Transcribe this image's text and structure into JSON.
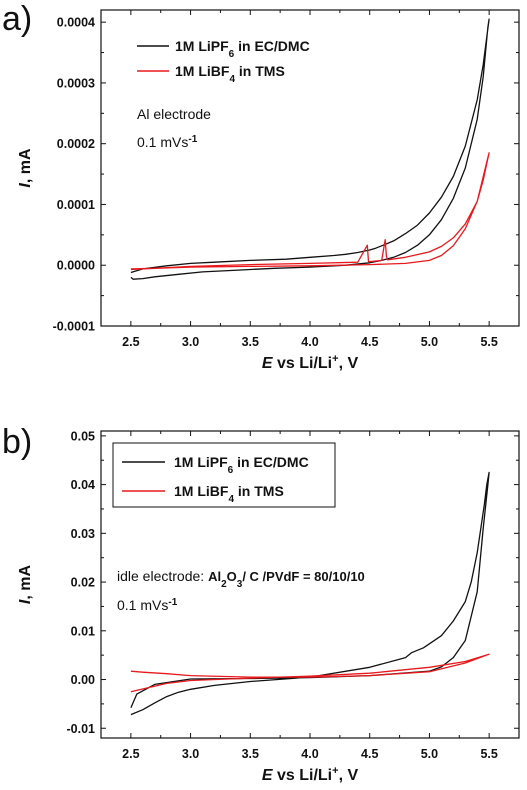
{
  "chart_data": [
    {
      "type": "line",
      "panel_label": "a)",
      "xlim": [
        2.25,
        5.75
      ],
      "ylim": [
        -0.0001,
        0.00042
      ],
      "x_ticks": [
        2.5,
        3.0,
        3.5,
        4.0,
        4.5,
        5.0,
        5.5
      ],
      "x_tick_labels": [
        "2.5",
        "3.0",
        "3.5",
        "4.0",
        "4.5",
        "5.0",
        "5.5"
      ],
      "y_ticks": [
        -0.0001,
        0.0,
        0.0001,
        0.0002,
        0.0003,
        0.0004
      ],
      "y_tick_labels": [
        "-0.0001",
        "0.0000",
        "0.0001",
        "0.0002",
        "0.0003",
        "0.0004"
      ],
      "xlabel": {
        "italic": "E",
        "text": " vs Li/Li",
        "sup": "+",
        "tail": ", V"
      },
      "ylabel": {
        "italic": "I",
        "text": ", mA"
      },
      "legend": [
        {
          "pre": "1M LiPF",
          "sub": "6",
          "post": "  in EC/DMC",
          "color": "#111111"
        },
        {
          "pre": "1M LiBF",
          "sub": "4",
          "post": "  in TMS",
          "color": "#e8191c"
        }
      ],
      "annotations": [
        {
          "text": "Al electrode"
        },
        {
          "pre": "0.1 mVs",
          "sup": "-1"
        }
      ],
      "series": [
        {
          "name": "1M LiPF6 in EC/DMC",
          "color": "#111111",
          "x": [
            2.5,
            2.6,
            2.8,
            3.0,
            3.2,
            3.5,
            3.8,
            4.0,
            4.2,
            4.3,
            4.4,
            4.5,
            4.55,
            4.6,
            4.7,
            4.8,
            4.9,
            5.0,
            5.1,
            5.2,
            5.3,
            5.4,
            5.45,
            5.5,
            5.49,
            5.45,
            5.4,
            5.3,
            5.2,
            5.1,
            5.0,
            4.9,
            4.8,
            4.7,
            4.6,
            4.5,
            4.3,
            4.0,
            3.7,
            3.4,
            3.1,
            2.9,
            2.7,
            2.6,
            2.52,
            2.5
          ],
          "y": [
            -1.2e-05,
            -6e-06,
            -1e-06,
            3e-06,
            5e-06,
            8e-06,
            1e-05,
            1.3e-05,
            1.6e-05,
            1.8e-05,
            2.1e-05,
            2.5e-05,
            2.8e-05,
            3.2e-05,
            4e-05,
            5.2e-05,
            6.6e-05,
            8.6e-05,
            0.000112,
            0.000146,
            0.000196,
            0.000272,
            0.00033,
            0.000405,
            0.000392,
            0.00031,
            0.00024,
            0.00016,
            0.00011,
            7.5e-05,
            5e-05,
            3.3e-05,
            2.1e-05,
            1.3e-05,
            8e-06,
            4e-06,
            0.0,
            -3e-06,
            -5e-06,
            -8e-06,
            -1.1e-05,
            -1.5e-05,
            -1.9e-05,
            -2.2e-05,
            -2.3e-05,
            -2e-05
          ]
        },
        {
          "name": "1M LiBF4 in TMS",
          "color": "#e8191c",
          "x": [
            2.5,
            2.7,
            3.0,
            3.5,
            4.0,
            4.4,
            4.48,
            4.49,
            4.5,
            4.6,
            4.63,
            4.64,
            4.65,
            4.8,
            5.0,
            5.1,
            5.2,
            5.3,
            5.4,
            5.45,
            5.5,
            5.48,
            5.4,
            5.3,
            5.2,
            5.1,
            5.0,
            4.8,
            4.5,
            4.0,
            3.5,
            3.0,
            2.7,
            2.5
          ],
          "y": [
            -7e-06,
            -5e-06,
            -2e-06,
            1e-06,
            3e-06,
            5e-06,
            3.3e-05,
            6e-06,
            6e-06,
            8e-06,
            4.2e-05,
            1.5e-05,
            9e-06,
            1.3e-05,
            2.2e-05,
            3.1e-05,
            4.5e-05,
            6.8e-05,
            0.000105,
            0.00014,
            0.000185,
            0.00017,
            0.000105,
            6e-05,
            3.2e-05,
            1.6e-05,
            8e-06,
            3e-06,
            1e-06,
            -1e-06,
            -2e-06,
            -3e-06,
            -5e-06,
            -6e-06
          ]
        }
      ]
    },
    {
      "type": "line",
      "panel_label": "b)",
      "xlim": [
        2.25,
        5.75
      ],
      "ylim": [
        -0.012,
        0.051
      ],
      "x_ticks": [
        2.5,
        3.0,
        3.5,
        4.0,
        4.5,
        5.0,
        5.5
      ],
      "x_tick_labels": [
        "2.5",
        "3.0",
        "3.5",
        "4.0",
        "4.5",
        "5.0",
        "5.5"
      ],
      "y_ticks": [
        -0.01,
        0.0,
        0.01,
        0.02,
        0.03,
        0.04,
        0.05
      ],
      "y_tick_labels": [
        "-0.01",
        "0.00",
        "0.01",
        "0.02",
        "0.03",
        "0.04",
        "0.05"
      ],
      "xlabel": {
        "italic": "E",
        "text": " vs Li/Li",
        "sup": "+",
        "tail": ", V"
      },
      "ylabel": {
        "italic": "I",
        "text": ", mA"
      },
      "legend": [
        {
          "pre": "1M LiPF",
          "sub": "6",
          "post": "  in EC/DMC",
          "color": "#111111"
        },
        {
          "pre": "1M LiBF",
          "sub": "4",
          "post": "  in TMS",
          "color": "#e8191c"
        }
      ],
      "annotations": [
        {
          "pre": "idle electrode: ",
          "bold_parts": [
            "Al",
            "2",
            "O",
            "3",
            "/ C /PVdF = 80/10/10"
          ]
        },
        {
          "pre": "0.1 mVs",
          "sup": "-1"
        }
      ],
      "series": [
        {
          "name": "1M LiPF6 in EC/DMC",
          "color": "#111111",
          "x": [
            2.5,
            2.6,
            2.7,
            2.8,
            2.9,
            3.0,
            3.2,
            3.5,
            4.0,
            4.5,
            4.8,
            4.85,
            4.95,
            5.1,
            5.2,
            5.3,
            5.35,
            5.4,
            5.43,
            5.46,
            5.48,
            5.5,
            5.49,
            5.45,
            5.4,
            5.3,
            5.2,
            5.1,
            5.0,
            4.5,
            4.0,
            3.5,
            3.0,
            2.7,
            2.55,
            2.5
          ],
          "y": [
            -0.0072,
            -0.0062,
            -0.0048,
            -0.0035,
            -0.0026,
            -0.002,
            -0.0012,
            -0.0004,
            0.0005,
            0.0025,
            0.0045,
            0.0055,
            0.0065,
            0.009,
            0.012,
            0.016,
            0.02,
            0.026,
            0.031,
            0.036,
            0.04,
            0.0425,
            0.04,
            0.031,
            0.018,
            0.008,
            0.0045,
            0.0026,
            0.0017,
            0.0008,
            0.0004,
            0.0002,
            0.0001,
            -0.001,
            -0.003,
            -0.0058
          ]
        },
        {
          "name": "1M LiBF4 in TMS",
          "color": "#e8191c",
          "x": [
            2.5,
            2.8,
            3.0,
            3.5,
            4.0,
            4.5,
            5.0,
            5.3,
            5.5,
            5.3,
            5.0,
            4.5,
            4.0,
            3.5,
            3.0,
            2.8,
            2.6,
            2.5
          ],
          "y": [
            -0.0025,
            -0.0008,
            -0.0002,
            0.0003,
            0.0007,
            0.0013,
            0.0025,
            0.0037,
            0.0052,
            0.0034,
            0.0016,
            0.0008,
            0.0005,
            0.0005,
            0.0008,
            0.0012,
            0.0015,
            0.0017
          ]
        }
      ]
    }
  ]
}
